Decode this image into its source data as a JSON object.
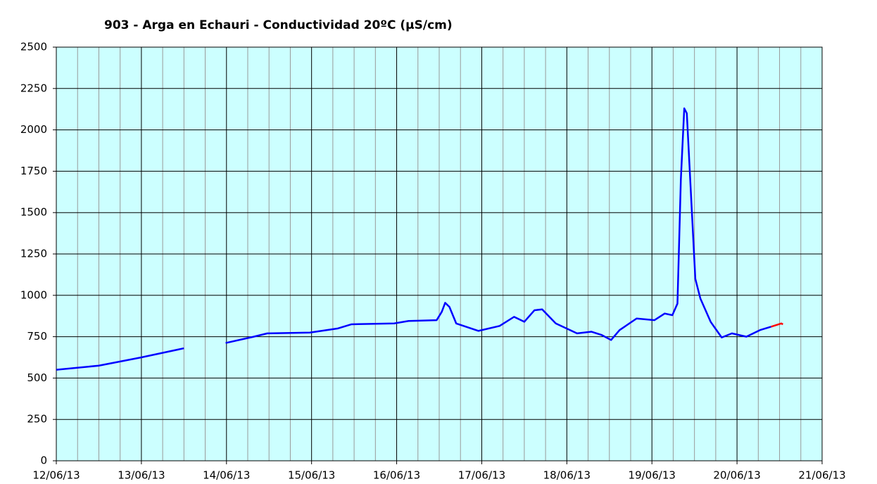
{
  "chart_data": {
    "type": "line",
    "title": "903 - Arga en Echauri - Conductividad 20ºC (µS/cm)",
    "xlim": [
      0,
      9
    ],
    "xticks": [
      {
        "value": 0,
        "label": "12/06/13"
      },
      {
        "value": 1,
        "label": "13/06/13"
      },
      {
        "value": 2,
        "label": "14/06/13"
      },
      {
        "value": 3,
        "label": "15/06/13"
      },
      {
        "value": 4,
        "label": "16/06/13"
      },
      {
        "value": 5,
        "label": "17/06/13"
      },
      {
        "value": 6,
        "label": "18/06/13"
      },
      {
        "value": 7,
        "label": "19/06/13"
      },
      {
        "value": 8,
        "label": "20/06/13"
      },
      {
        "value": 9,
        "label": "21/06/13"
      }
    ],
    "x_minor_divisions": 4,
    "ylim": [
      0,
      2500
    ],
    "yticks": [
      0,
      250,
      500,
      750,
      1000,
      1250,
      1500,
      1750,
      2000,
      2250,
      2500
    ],
    "grid": true,
    "background": "#ccffff",
    "series": [
      {
        "color": "#0000ff",
        "x": [
          0,
          0.5,
          1.0,
          1.5,
          1.61,
          1.99,
          2.32,
          2.48,
          2.98,
          3.31,
          3.47,
          3.97,
          4.14,
          4.47,
          4.53,
          4.57,
          4.62,
          4.7,
          4.96,
          5.21,
          5.38,
          5.5,
          5.62,
          5.71,
          5.87,
          6.12,
          6.29,
          6.41,
          6.52,
          6.62,
          6.82,
          7.03,
          7.15,
          7.24,
          7.3,
          7.34,
          7.38,
          7.41,
          7.47,
          7.51,
          7.57,
          7.69,
          7.82,
          7.94,
          8.11,
          8.27,
          8.4
        ],
        "values": [
          550,
          575,
          625,
          680,
          null,
          712,
          750,
          770,
          775,
          800,
          825,
          830,
          845,
          850,
          900,
          955,
          930,
          830,
          785,
          815,
          870,
          840,
          910,
          915,
          830,
          770,
          780,
          760,
          730,
          790,
          860,
          850,
          890,
          880,
          950,
          1700,
          2130,
          2100,
          1500,
          1100,
          980,
          840,
          745,
          770,
          750,
          790,
          810
        ]
      },
      {
        "color": "#ff0000",
        "x": [
          8.4,
          8.52,
          8.54
        ],
        "values": [
          810,
          830,
          825
        ]
      }
    ]
  }
}
